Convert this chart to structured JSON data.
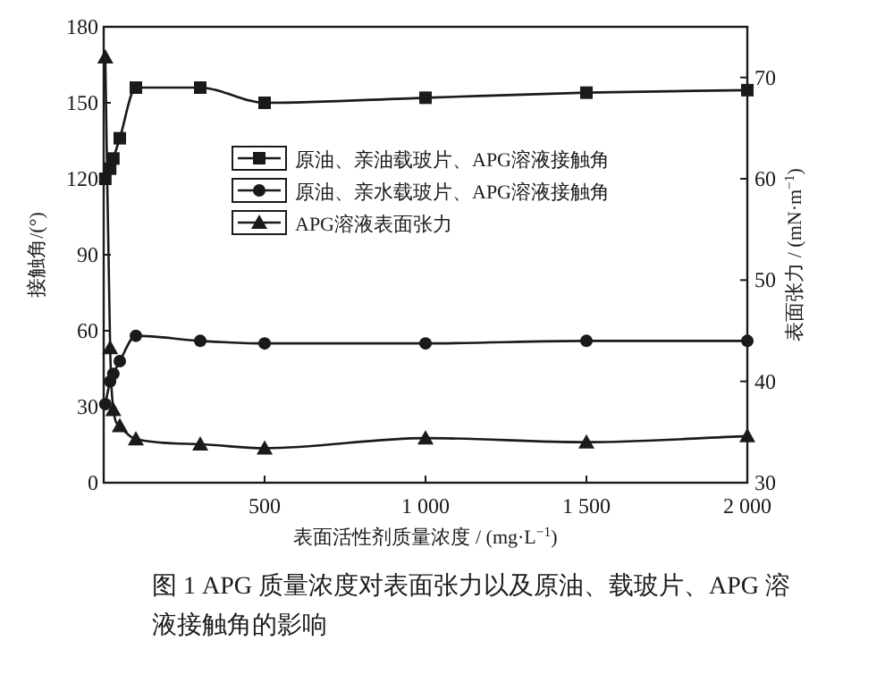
{
  "chart_data": {
    "type": "line",
    "xlabel": "表面活性剂质量浓度 / (mg·L$^{−1}$)",
    "ylabel": "接触角/(°)",
    "y2label": "表面张力 / (mN·m$^{−1}$)",
    "xlim": [
      0,
      2000
    ],
    "xticks": [
      500,
      {
        "value": 1000,
        "label": "1 000"
      },
      {
        "value": 1500,
        "label": "1 500"
      },
      {
        "value": 2000,
        "label": "2 000"
      }
    ],
    "ylim": [
      0,
      180
    ],
    "yticks": [
      0,
      30,
      60,
      90,
      120,
      150,
      180
    ],
    "y2lim": [
      30,
      75
    ],
    "y2ticks": [
      30,
      40,
      50,
      60,
      70
    ],
    "grid": false,
    "legend": "left",
    "line_style": "solid",
    "series": [
      {
        "name": "原油、亲油载玻片、APG溶液接触角",
        "color": "#1a1a1a",
        "marker": "square",
        "x": [
          5,
          20,
          30,
          50,
          100,
          300,
          500,
          1000,
          1500,
          2000
        ],
        "values": [
          120,
          124,
          128,
          136,
          156,
          156,
          150,
          152,
          154,
          155
        ]
      },
      {
        "name": "原油、亲水载玻片、APG溶液接触角",
        "color": "#1a1a1a",
        "marker": "circle",
        "x": [
          5,
          20,
          30,
          50,
          100,
          300,
          500,
          1000,
          1500,
          2000
        ],
        "values": [
          31,
          40,
          43,
          48,
          58,
          56,
          55,
          55,
          56,
          56
        ]
      },
      {
        "name": "APG溶液表面张力",
        "color": "#1a1a1a",
        "marker": "triangle",
        "axis": "y2",
        "x": [
          5,
          20,
          30,
          50,
          100,
          300,
          500,
          1000,
          1500,
          2000
        ],
        "values": [
          72,
          43.3,
          37.2,
          35.6,
          34.3,
          33.8,
          33.4,
          34.4,
          34.0,
          34.6
        ]
      }
    ],
    "annotations": [
      "图 1  APG 质量浓度对表面张力以及原油、载玻片、APG 溶液接触角的影响"
    ]
  }
}
